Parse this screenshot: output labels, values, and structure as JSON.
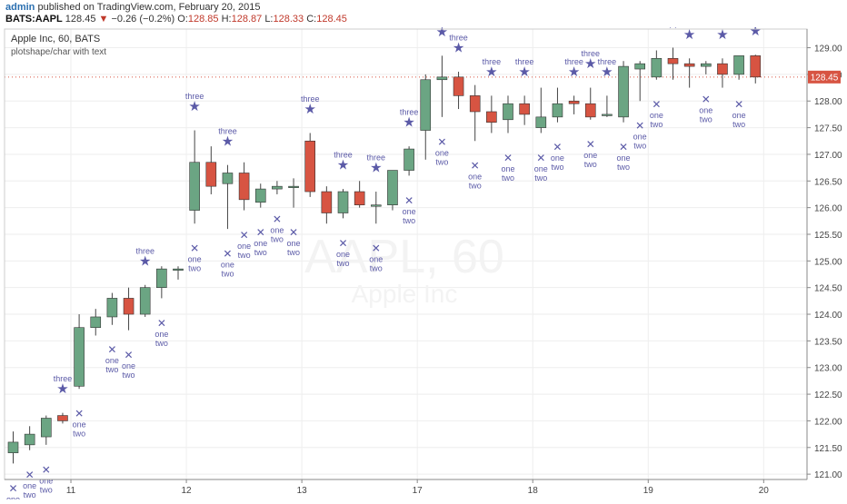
{
  "header": {
    "author": "admin",
    "published_text": " published on TradingView.com, February 20, 2015",
    "symbol": "BATS:AAPL",
    "last": "128.45",
    "change": "−0.26 (−0.2%)",
    "o_label": "O:",
    "o_value": "128.85",
    "h_label": "H:",
    "h_value": "128.87",
    "l_label": "L:",
    "l_value": "128.33",
    "c_label": "C:",
    "c_value": "128.45"
  },
  "chart_data": {
    "type": "candlestick",
    "title": "Apple Inc, 60, BATS",
    "subtitle": "plotshape/char with text",
    "watermark_line1": "AAPL, 60",
    "watermark_line2": "Apple Inc",
    "last_price_label": "128.45",
    "ylim": [
      120.9,
      129.35
    ],
    "y_ticks": [
      "121.00",
      "121.50",
      "122.00",
      "122.50",
      "123.00",
      "123.50",
      "124.00",
      "124.50",
      "125.00",
      "125.50",
      "126.00",
      "126.50",
      "127.00",
      "127.50",
      "128.00",
      "128.50",
      "129.00"
    ],
    "x_ticks": [
      {
        "label": "11",
        "index": 4
      },
      {
        "label": "12",
        "index": 11
      },
      {
        "label": "13",
        "index": 18
      },
      {
        "label": "17",
        "index": 25
      },
      {
        "label": "18",
        "index": 32
      },
      {
        "label": "19",
        "index": 39
      },
      {
        "label": "20",
        "index": 46
      }
    ],
    "candles": [
      {
        "o": 121.4,
        "h": 121.8,
        "l": 121.2,
        "c": 121.6
      },
      {
        "o": 121.55,
        "h": 121.9,
        "l": 121.45,
        "c": 121.75
      },
      {
        "o": 121.7,
        "h": 122.1,
        "l": 121.55,
        "c": 122.05
      },
      {
        "o": 122.1,
        "h": 122.15,
        "l": 121.95,
        "c": 122.0
      },
      {
        "o": 122.65,
        "h": 124.0,
        "l": 122.6,
        "c": 123.75
      },
      {
        "o": 123.75,
        "h": 124.1,
        "l": 123.6,
        "c": 123.95
      },
      {
        "o": 123.95,
        "h": 124.4,
        "l": 123.8,
        "c": 124.3
      },
      {
        "o": 124.3,
        "h": 124.5,
        "l": 123.7,
        "c": 124.0
      },
      {
        "o": 124.0,
        "h": 124.55,
        "l": 123.95,
        "c": 124.5
      },
      {
        "o": 124.5,
        "h": 124.9,
        "l": 124.3,
        "c": 124.85
      },
      {
        "o": 124.85,
        "h": 124.9,
        "l": 124.65,
        "c": 124.85
      },
      {
        "o": 125.95,
        "h": 127.45,
        "l": 125.7,
        "c": 126.85
      },
      {
        "o": 126.85,
        "h": 127.15,
        "l": 126.25,
        "c": 126.4
      },
      {
        "o": 126.45,
        "h": 126.8,
        "l": 125.6,
        "c": 126.65
      },
      {
        "o": 126.65,
        "h": 126.85,
        "l": 125.95,
        "c": 126.15
      },
      {
        "o": 126.1,
        "h": 126.45,
        "l": 126.0,
        "c": 126.35
      },
      {
        "o": 126.35,
        "h": 126.5,
        "l": 126.25,
        "c": 126.4
      },
      {
        "o": 126.4,
        "h": 126.55,
        "l": 126.0,
        "c": 126.4
      },
      {
        "o": 127.25,
        "h": 127.4,
        "l": 126.2,
        "c": 126.3
      },
      {
        "o": 126.3,
        "h": 126.4,
        "l": 125.7,
        "c": 125.9
      },
      {
        "o": 125.9,
        "h": 126.35,
        "l": 125.8,
        "c": 126.3
      },
      {
        "o": 126.3,
        "h": 126.5,
        "l": 126.0,
        "c": 126.05
      },
      {
        "o": 126.05,
        "h": 126.3,
        "l": 125.7,
        "c": 126.05
      },
      {
        "o": 126.05,
        "h": 126.7,
        "l": 125.95,
        "c": 126.7
      },
      {
        "o": 126.7,
        "h": 127.15,
        "l": 126.6,
        "c": 127.1
      },
      {
        "o": 127.45,
        "h": 128.5,
        "l": 126.9,
        "c": 128.4
      },
      {
        "o": 128.4,
        "h": 128.85,
        "l": 127.7,
        "c": 128.45
      },
      {
        "o": 128.45,
        "h": 128.55,
        "l": 127.85,
        "c": 128.1
      },
      {
        "o": 128.1,
        "h": 128.3,
        "l": 127.25,
        "c": 127.8
      },
      {
        "o": 127.8,
        "h": 128.1,
        "l": 127.4,
        "c": 127.6
      },
      {
        "o": 127.65,
        "h": 128.1,
        "l": 127.4,
        "c": 127.95
      },
      {
        "o": 127.95,
        "h": 128.1,
        "l": 127.55,
        "c": 127.75
      },
      {
        "o": 127.5,
        "h": 128.25,
        "l": 127.4,
        "c": 127.7
      },
      {
        "o": 127.7,
        "h": 128.25,
        "l": 127.6,
        "c": 127.95
      },
      {
        "o": 128.0,
        "h": 128.1,
        "l": 127.75,
        "c": 127.95
      },
      {
        "o": 127.95,
        "h": 128.25,
        "l": 127.65,
        "c": 127.7
      },
      {
        "o": 127.75,
        "h": 128.1,
        "l": 127.7,
        "c": 127.75
      },
      {
        "o": 127.7,
        "h": 128.75,
        "l": 127.6,
        "c": 128.65
      },
      {
        "o": 128.6,
        "h": 128.75,
        "l": 128.0,
        "c": 128.7
      },
      {
        "o": 128.45,
        "h": 128.95,
        "l": 128.4,
        "c": 128.8
      },
      {
        "o": 128.8,
        "h": 129.0,
        "l": 128.4,
        "c": 128.7
      },
      {
        "o": 128.7,
        "h": 128.8,
        "l": 128.25,
        "c": 128.65
      },
      {
        "o": 128.65,
        "h": 128.75,
        "l": 128.5,
        "c": 128.7
      },
      {
        "o": 128.7,
        "h": 128.8,
        "l": 128.25,
        "c": 128.5
      },
      {
        "o": 128.5,
        "h": 128.85,
        "l": 128.4,
        "c": 128.85
      },
      {
        "o": 128.85,
        "h": 128.87,
        "l": 128.33,
        "c": 128.45
      }
    ],
    "markers": {
      "three": {
        "text": "three",
        "glyph": "★",
        "color": "#5b5aa7",
        "indices": [
          3,
          8,
          11,
          13,
          18,
          20,
          22,
          24,
          26,
          27,
          29,
          31,
          34,
          35,
          36,
          40,
          41,
          43,
          45
        ],
        "offset": 0.45
      },
      "one": {
        "text": "one",
        "text2": "two",
        "glyph": "✕",
        "color": "#5b5aa7",
        "indices": [
          0,
          1,
          2,
          4,
          6,
          7,
          9,
          11,
          13,
          14,
          15,
          16,
          17,
          20,
          22,
          24,
          26,
          28,
          30,
          32,
          33,
          35,
          37,
          38,
          39,
          42,
          44
        ],
        "offset": 0.45
      }
    },
    "colors": {
      "up": "#6ba583",
      "down": "#d75442",
      "wick": "#444444",
      "grid": "#eeeeee",
      "marker": "#5b5aa7",
      "last_price": "#d75442"
    }
  }
}
